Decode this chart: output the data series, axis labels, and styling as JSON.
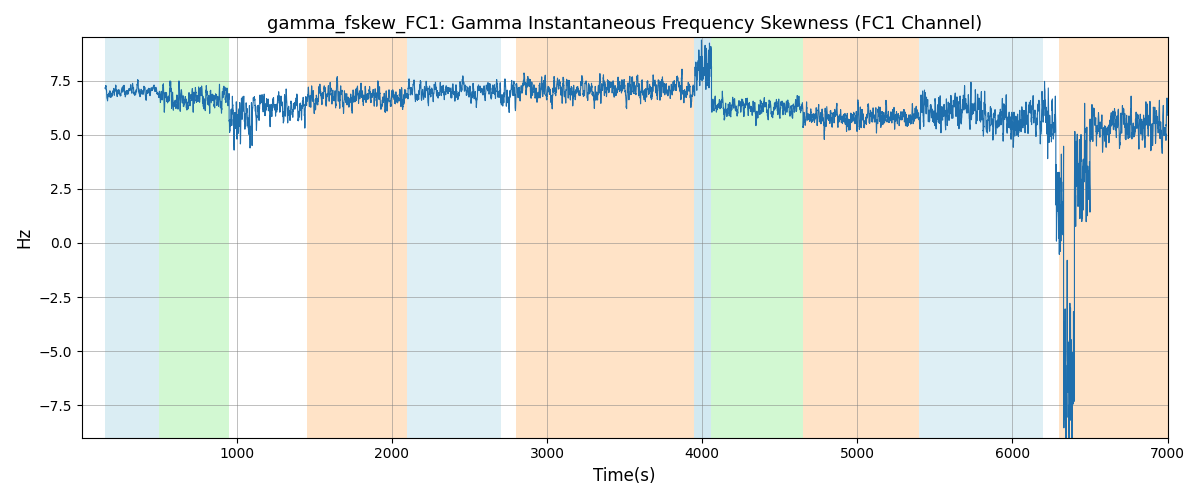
{
  "title": "gamma_fskew_FC1: Gamma Instantaneous Frequency Skewness (FC1 Channel)",
  "xlabel": "Time(s)",
  "ylabel": "Hz",
  "xlim": [
    0,
    7000
  ],
  "ylim": [
    -9,
    9.5
  ],
  "yticks": [
    -7.5,
    -5.0,
    -2.5,
    0.0,
    2.5,
    5.0,
    7.5
  ],
  "xticks": [
    1000,
    2000,
    3000,
    4000,
    5000,
    6000,
    7000
  ],
  "background_regions": [
    {
      "xmin": 150,
      "xmax": 500,
      "color": "#add8e6",
      "alpha": 0.45
    },
    {
      "xmin": 500,
      "xmax": 950,
      "color": "#90ee90",
      "alpha": 0.4
    },
    {
      "xmin": 1450,
      "xmax": 2100,
      "color": "#ffcc99",
      "alpha": 0.55
    },
    {
      "xmin": 2100,
      "xmax": 2700,
      "color": "#add8e6",
      "alpha": 0.4
    },
    {
      "xmin": 2800,
      "xmax": 3950,
      "color": "#ffcc99",
      "alpha": 0.55
    },
    {
      "xmin": 3950,
      "xmax": 4060,
      "color": "#add8e6",
      "alpha": 0.55
    },
    {
      "xmin": 4060,
      "xmax": 4650,
      "color": "#90ee90",
      "alpha": 0.4
    },
    {
      "xmin": 4650,
      "xmax": 5400,
      "color": "#ffcc99",
      "alpha": 0.55
    },
    {
      "xmin": 5400,
      "xmax": 6200,
      "color": "#add8e6",
      "alpha": 0.4
    },
    {
      "xmin": 6300,
      "xmax": 7000,
      "color": "#ffcc99",
      "alpha": 0.55
    }
  ],
  "line_color": "#1f6fad",
  "line_width": 0.8,
  "seed": 42
}
